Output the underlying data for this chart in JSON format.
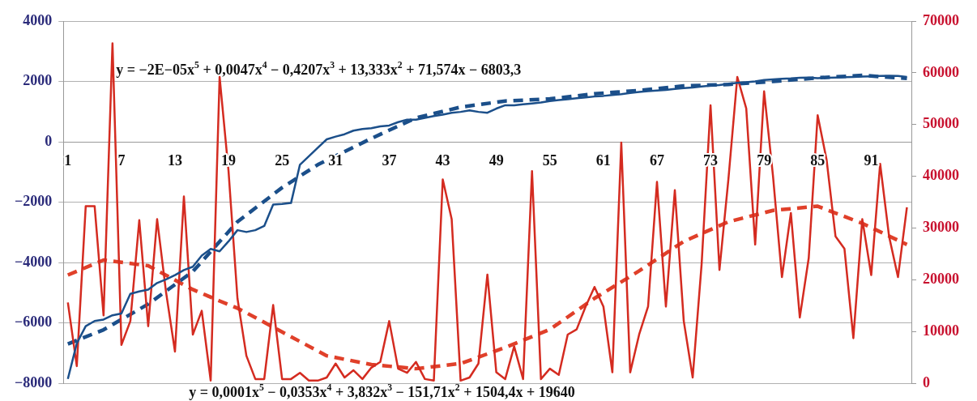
{
  "chart_data": {
    "type": "line",
    "marker": "none",
    "grid": "y",
    "x": [
      1,
      2,
      3,
      4,
      5,
      6,
      7,
      8,
      9,
      10,
      11,
      12,
      13,
      14,
      15,
      16,
      17,
      18,
      19,
      20,
      21,
      22,
      23,
      24,
      25,
      26,
      27,
      28,
      29,
      30,
      31,
      32,
      33,
      34,
      35,
      36,
      37,
      38,
      39,
      40,
      41,
      42,
      43,
      44,
      45,
      46,
      47,
      48,
      49,
      50,
      51,
      52,
      53,
      54,
      55,
      56,
      57,
      58,
      59,
      60,
      61,
      62,
      63,
      64,
      65,
      66,
      67,
      68,
      69,
      70,
      71,
      72,
      73,
      74,
      75,
      76,
      77,
      78,
      79,
      80,
      81,
      82,
      83,
      84,
      85,
      86,
      87,
      88,
      89,
      90,
      91,
      92,
      93,
      94,
      95
    ],
    "xlim": [
      0.5,
      95.5
    ],
    "xticks": [
      1,
      7,
      13,
      19,
      25,
      31,
      37,
      43,
      49,
      55,
      61,
      67,
      73,
      79,
      85,
      91
    ],
    "ylim": [
      -8000,
      4000
    ],
    "yticks": [
      {
        "value": -8000,
        "label": "−8000"
      },
      {
        "value": -6000,
        "label": "−6000"
      },
      {
        "value": -4000,
        "label": "−4000"
      },
      {
        "value": -2000,
        "label": "−2000"
      },
      0,
      2000,
      4000
    ],
    "y2lim": [
      0,
      70000
    ],
    "y2ticks": [
      0,
      10000,
      20000,
      30000,
      40000,
      50000,
      60000,
      70000
    ],
    "series": [
      {
        "type": "line",
        "color": "#1b4f8a",
        "values": [
          -7860,
          -6680,
          -6110,
          -5940,
          -5890,
          -5750,
          -5690,
          -5040,
          -4960,
          -4900,
          -4680,
          -4560,
          -4420,
          -4250,
          -4140,
          -3770,
          -3550,
          -3630,
          -3300,
          -2930,
          -2990,
          -2930,
          -2790,
          -2080,
          -2060,
          -2030,
          -760,
          -480,
          -200,
          80,
          170,
          250,
          370,
          420,
          450,
          510,
          540,
          650,
          730,
          730,
          790,
          850,
          900,
          960,
          990,
          1040,
          990,
          960,
          1100,
          1210,
          1210,
          1240,
          1270,
          1300,
          1350,
          1380,
          1410,
          1440,
          1470,
          1500,
          1520,
          1550,
          1580,
          1620,
          1650,
          1680,
          1700,
          1720,
          1750,
          1780,
          1800,
          1830,
          1860,
          1880,
          1920,
          1950,
          1970,
          2000,
          2050,
          2070,
          2090,
          2100,
          2120,
          2130,
          2110,
          2120,
          2130,
          2140,
          2150,
          2160,
          2170,
          2180,
          2190,
          2180,
          2150
        ]
      },
      {
        "type": "line",
        "color": "#d42b20",
        "axis": "y2",
        "values": [
          15600,
          3300,
          34200,
          34200,
          13100,
          65700,
          7400,
          12000,
          31500,
          11000,
          31700,
          17600,
          6100,
          36100,
          9400,
          14000,
          500,
          59200,
          41000,
          16400,
          5300,
          800,
          800,
          15100,
          800,
          800,
          2000,
          500,
          500,
          1100,
          3800,
          1100,
          2500,
          800,
          3000,
          4100,
          12000,
          2800,
          2000,
          4100,
          800,
          500,
          39400,
          31700,
          500,
          1100,
          3800,
          21000,
          2100,
          800,
          7100,
          800,
          41000,
          800,
          2800,
          1600,
          9400,
          10400,
          14800,
          18600,
          14800,
          2100,
          46500,
          2100,
          9400,
          14800,
          38900,
          14800,
          37300,
          12000,
          1100,
          23000,
          53700,
          21900,
          39400,
          59200,
          53100,
          26800,
          56400,
          40000,
          20500,
          32900,
          12700,
          24200,
          51800,
          43200,
          28400,
          26000,
          8700,
          31700,
          20900,
          42400,
          28400,
          20500,
          34000
        ]
      },
      {
        "type": "line",
        "color": "#1b4f8a",
        "line_style": "dashed",
        "x": [
          1,
          5,
          10,
          15,
          20,
          25,
          29,
          35,
          40,
          45,
          50,
          55,
          60,
          65,
          70,
          75,
          80,
          85,
          90,
          95
        ],
        "values": [
          -6700,
          -6230,
          -5380,
          -4300,
          -2650,
          -1520,
          -760,
          110,
          790,
          1150,
          1350,
          1420,
          1590,
          1700,
          1850,
          1900,
          2000,
          2120,
          2200,
          2100
        ]
      },
      {
        "type": "line",
        "color": "#e0402a",
        "axis": "y2",
        "line_style": "dashed",
        "x": [
          1,
          5,
          10,
          15,
          18,
          20,
          22,
          25,
          30,
          35,
          40,
          45,
          50,
          55,
          60,
          65,
          70,
          75,
          80,
          85,
          90,
          95
        ],
        "values": [
          20900,
          23800,
          22700,
          18100,
          15900,
          14500,
          12700,
          9900,
          5300,
          3600,
          2800,
          3800,
          6900,
          10400,
          16400,
          21700,
          27400,
          31200,
          33400,
          34200,
          30900,
          26800
        ]
      }
    ],
    "annotations": [
      "y = −2E−05x$^{5}$ + 0,0047x$^{4}$ − 0,4207x$^{3}$ + 13,333x$^{2}$ + 71,574x − 6803,3",
      "y = 0,0001x$^{5}$ − 0,0353x$^{4}$ + 3,832x$^{3}$ − 151,71x$^{2}$ + 1504,4x + 19640"
    ]
  }
}
